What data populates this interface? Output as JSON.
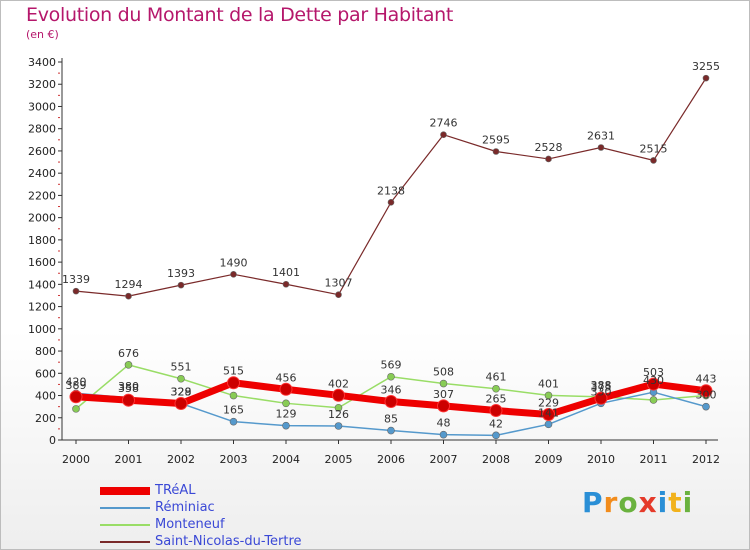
{
  "chart_data": {
    "type": "line",
    "title": "Evolution du Montant de la Dette par Habitant",
    "subtitle": "(en €)",
    "x": [
      "2000",
      "2001",
      "2002",
      "2003",
      "2004",
      "2005",
      "2006",
      "2007",
      "2008",
      "2009",
      "2010",
      "2011",
      "2012"
    ],
    "ylim": [
      0,
      3400
    ],
    "yticks": [
      0,
      200,
      400,
      600,
      800,
      1000,
      1200,
      1400,
      1600,
      1800,
      2000,
      2200,
      2400,
      2600,
      2800,
      3000,
      3200,
      3400
    ],
    "grid": false,
    "legend_position": "bottom-left",
    "series": [
      {
        "name": "TRéAL",
        "color": "#ee0000",
        "values": [
          389,
          358,
          328,
          515,
          456,
          402,
          346,
          307,
          265,
          229,
          375,
          503,
          443
        ]
      },
      {
        "name": "Réminiac",
        "color": "#5599cc",
        "values": [
          420,
          380,
          329,
          165,
          129,
          126,
          85,
          48,
          42,
          141,
          330,
          430,
          300
        ]
      },
      {
        "name": "Monteneuf",
        "color": "#99dd66",
        "values": [
          280,
          676,
          551,
          400,
          330,
          290,
          569,
          508,
          461,
          401,
          388,
          360,
          400
        ]
      },
      {
        "name": "Saint-Nicolas-du-Tertre",
        "color": "#7a2a2a",
        "values": [
          1339,
          1294,
          1393,
          1490,
          1401,
          1307,
          2138,
          2746,
          2595,
          2528,
          2631,
          2515,
          3255
        ]
      }
    ],
    "data_labels": [
      {
        "series": 3,
        "index": 0,
        "text": "1339"
      },
      {
        "series": 3,
        "index": 1,
        "text": "1294"
      },
      {
        "series": 3,
        "index": 2,
        "text": "1393"
      },
      {
        "series": 3,
        "index": 3,
        "text": "1490"
      },
      {
        "series": 3,
        "index": 4,
        "text": "1401"
      },
      {
        "series": 3,
        "index": 5,
        "text": "1307"
      },
      {
        "series": 3,
        "index": 6,
        "text": "2138"
      },
      {
        "series": 3,
        "index": 7,
        "text": "2746"
      },
      {
        "series": 3,
        "index": 8,
        "text": "2595"
      },
      {
        "series": 3,
        "index": 9,
        "text": "2528"
      },
      {
        "series": 3,
        "index": 10,
        "text": "2631"
      },
      {
        "series": 3,
        "index": 11,
        "text": "2515"
      },
      {
        "series": 3,
        "index": 12,
        "text": "3255"
      },
      {
        "series": 2,
        "index": 1,
        "text": "676"
      },
      {
        "series": 2,
        "index": 2,
        "text": "551"
      },
      {
        "series": 2,
        "index": 6,
        "text": "569"
      },
      {
        "series": 2,
        "index": 7,
        "text": "508"
      },
      {
        "series": 2,
        "index": 8,
        "text": "461"
      },
      {
        "series": 2,
        "index": 9,
        "text": "401"
      },
      {
        "series": 2,
        "index": 10,
        "text": "388"
      },
      {
        "series": 0,
        "index": 0,
        "text": "389"
      },
      {
        "series": 0,
        "index": 1,
        "text": "358"
      },
      {
        "series": 0,
        "index": 2,
        "text": "328"
      },
      {
        "series": 0,
        "index": 3,
        "text": "515"
      },
      {
        "series": 0,
        "index": 4,
        "text": "456"
      },
      {
        "series": 0,
        "index": 5,
        "text": "402"
      },
      {
        "series": 0,
        "index": 6,
        "text": "346"
      },
      {
        "series": 0,
        "index": 7,
        "text": "307"
      },
      {
        "series": 0,
        "index": 8,
        "text": "265"
      },
      {
        "series": 0,
        "index": 9,
        "text": "229"
      },
      {
        "series": 0,
        "index": 10,
        "text": "375"
      },
      {
        "series": 0,
        "index": 11,
        "text": "503"
      },
      {
        "series": 0,
        "index": 12,
        "text": "443"
      },
      {
        "series": 1,
        "index": 0,
        "text": "420"
      },
      {
        "series": 1,
        "index": 1,
        "text": "380"
      },
      {
        "series": 1,
        "index": 2,
        "text": "329"
      },
      {
        "series": 1,
        "index": 3,
        "text": "165"
      },
      {
        "series": 1,
        "index": 4,
        "text": "129"
      },
      {
        "series": 1,
        "index": 5,
        "text": "126"
      },
      {
        "series": 1,
        "index": 6,
        "text": "85"
      },
      {
        "series": 1,
        "index": 7,
        "text": "48"
      },
      {
        "series": 1,
        "index": 8,
        "text": "42"
      },
      {
        "series": 1,
        "index": 9,
        "text": "141"
      },
      {
        "series": 1,
        "index": 10,
        "text": "330"
      },
      {
        "series": 1,
        "index": 11,
        "text": "430"
      },
      {
        "series": 1,
        "index": 12,
        "text": "300"
      }
    ]
  },
  "logo": {
    "letters": [
      "P",
      "r",
      "o",
      "x",
      "i",
      "t",
      "i"
    ],
    "colors": [
      "#2a8fd6",
      "#f28c1c",
      "#6ab23e",
      "#e53a2a",
      "#2a8fd6",
      "#f2b21c",
      "#6ab23e"
    ]
  }
}
